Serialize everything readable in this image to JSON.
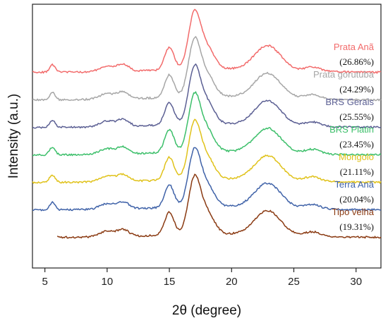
{
  "chart_data": {
    "type": "line",
    "title": "",
    "xlabel": "2θ (degree)",
    "ylabel": "Intensity (a.u.)",
    "xlim": [
      4,
      32
    ],
    "xticks": [
      5,
      10,
      15,
      20,
      25,
      30
    ],
    "grid": false,
    "legend_placement": "inline labels on right side",
    "series": [
      {
        "name": "Prata Anã",
        "label2": "(26.86%)",
        "color": "#f26b6b"
      },
      {
        "name": "Prata gorutuba",
        "label2": "(24.29%)",
        "color": "#a6a6a6"
      },
      {
        "name": "BRS Gerais",
        "label2": "(25.55%)",
        "color": "#5b5f93"
      },
      {
        "name": "BRS Platin",
        "label2": "(23.45%)",
        "color": "#3cbf6a"
      },
      {
        "name": "Mongolo",
        "label2": "(21.11%)",
        "color": "#e0c21a"
      },
      {
        "name": "Terra Anã",
        "label2": "(20.04%)",
        "color": "#3f62a8"
      },
      {
        "name": "Tipo velha",
        "label2": "(19.31%)",
        "color": "#8a3a12"
      }
    ]
  }
}
